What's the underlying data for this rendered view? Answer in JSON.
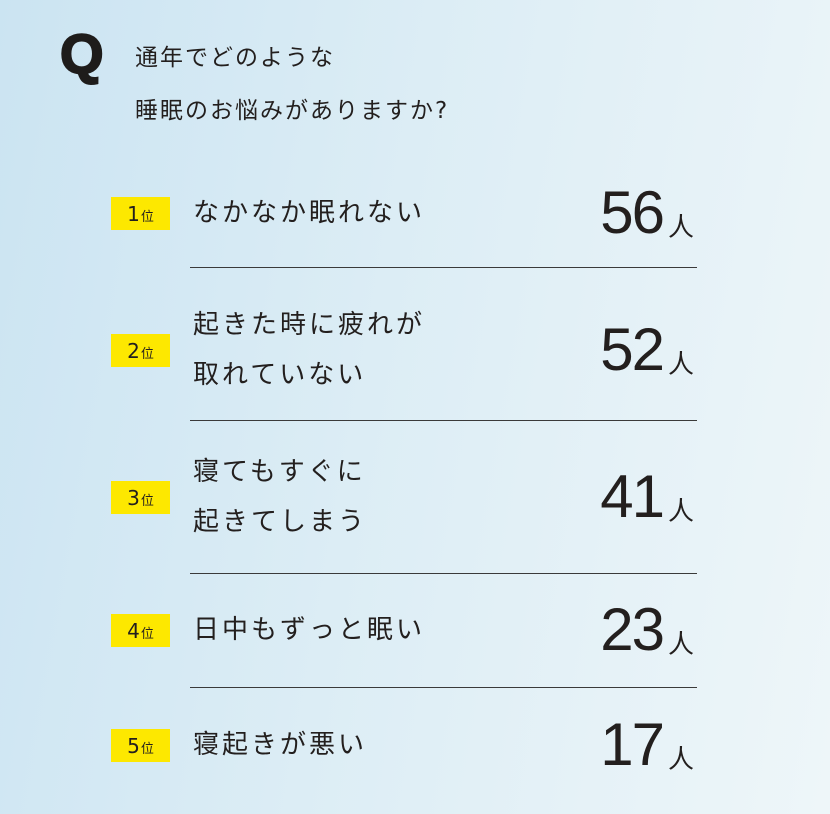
{
  "question": {
    "mark": "Q",
    "lines": [
      "通年でどのような",
      "睡眠のお悩みがありますか?"
    ]
  },
  "ranking": [
    {
      "rank": "1",
      "rank_suffix": "位",
      "lines": [
        "なかなか眠れない"
      ],
      "count": "56",
      "unit": "人"
    },
    {
      "rank": "2",
      "rank_suffix": "位",
      "lines": [
        "起きた時に疲れが",
        "取れていない"
      ],
      "count": "52",
      "unit": "人"
    },
    {
      "rank": "3",
      "rank_suffix": "位",
      "lines": [
        "寝てもすぐに",
        "起きてしまう"
      ],
      "count": "41",
      "unit": "人"
    },
    {
      "rank": "4",
      "rank_suffix": "位",
      "lines": [
        "日中もずっと眠い"
      ],
      "count": "23",
      "unit": "人"
    },
    {
      "rank": "5",
      "rank_suffix": "位",
      "lines": [
        "寝起きが悪い"
      ],
      "count": "17",
      "unit": "人"
    }
  ],
  "colors": {
    "badge": "#fde800",
    "text": "#231f1e",
    "background": "#dcedf5"
  }
}
